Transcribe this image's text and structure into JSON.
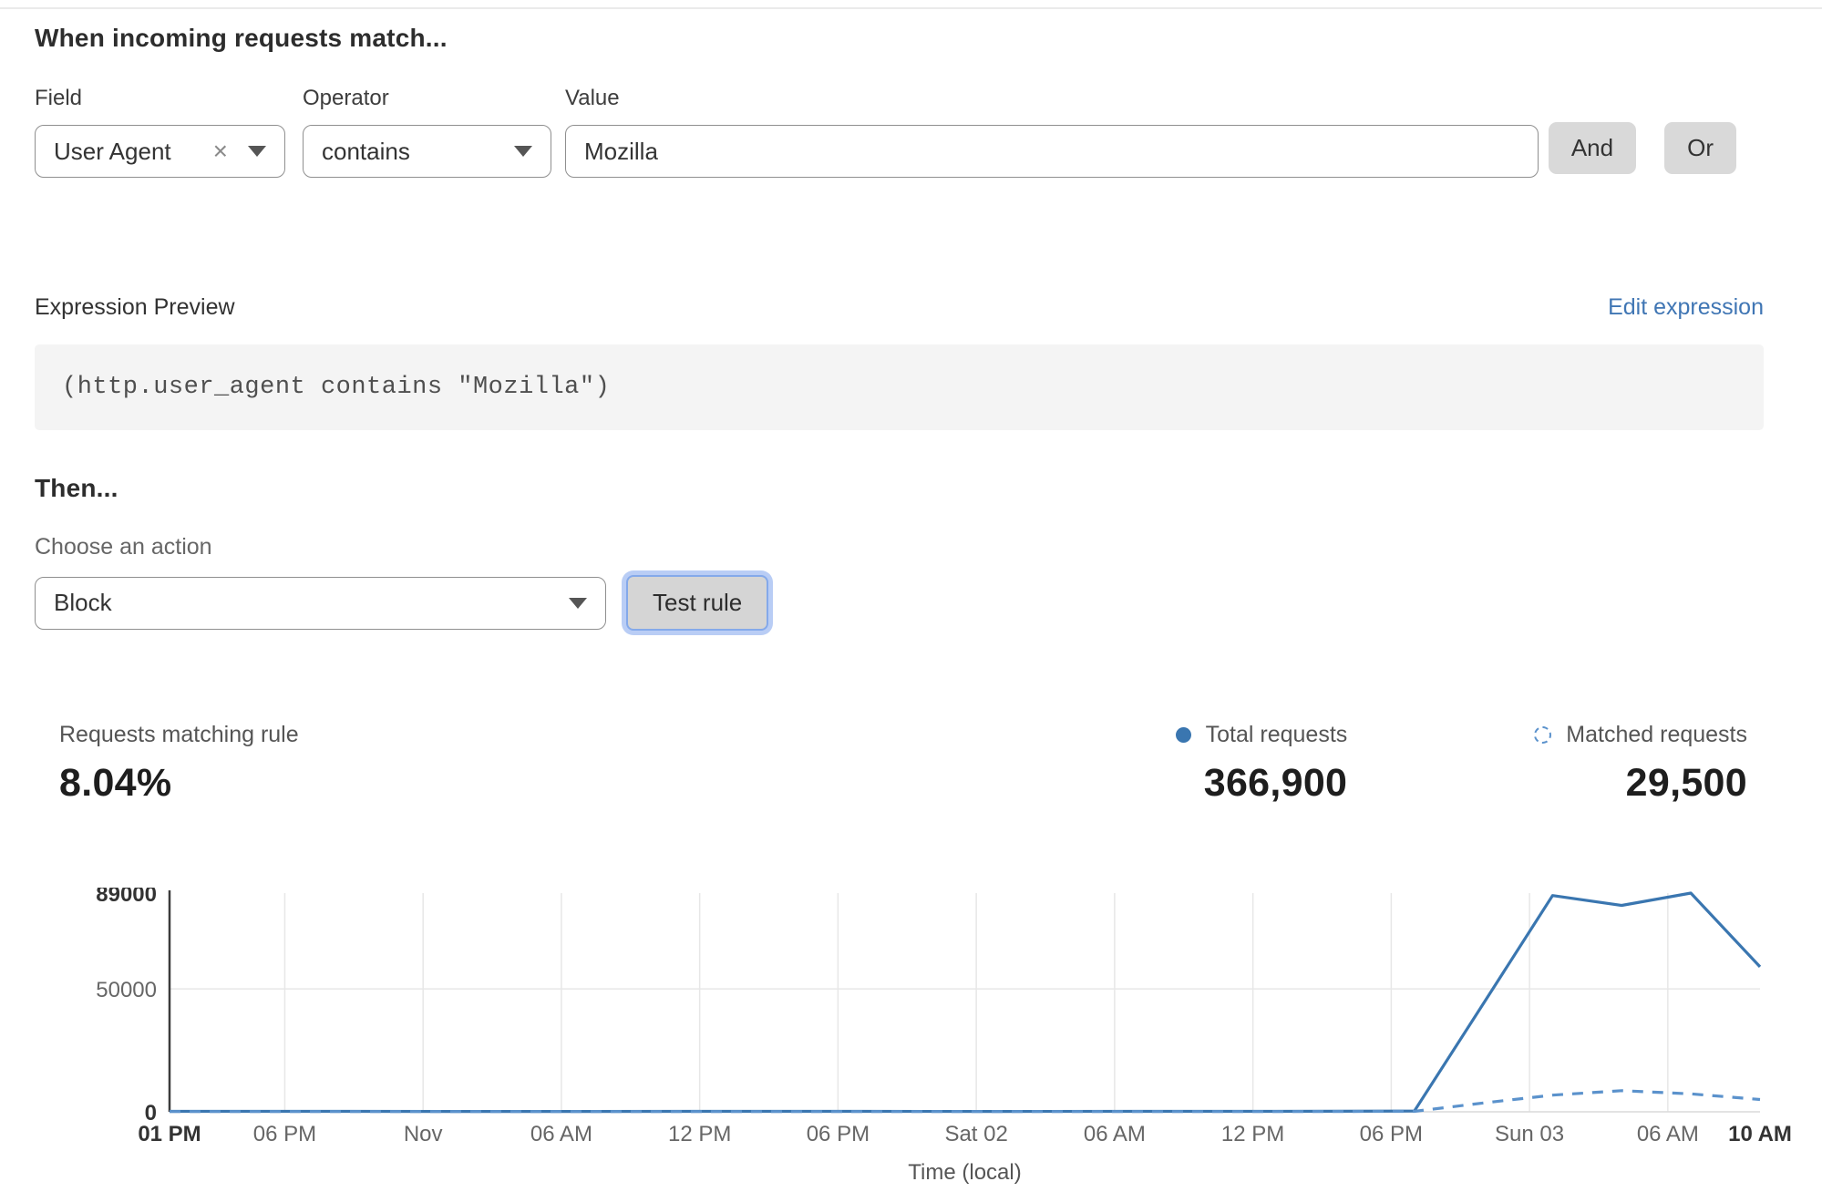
{
  "colors": {
    "line_blue": "#3a76b0",
    "dashed_blue": "#5b92cc",
    "link_blue": "#4076b4",
    "grid_gray": "#e7e7e7",
    "axis_dark": "#3c3c3c"
  },
  "icons": {
    "clear_glyph": "×"
  },
  "match_section": {
    "heading": "When incoming requests match...",
    "field_label": "Field",
    "operator_label": "Operator",
    "value_label": "Value",
    "field_value": "User Agent",
    "operator_value": "contains",
    "value_value": "Mozilla",
    "and_label": "And",
    "or_label": "Or"
  },
  "expression": {
    "label": "Expression Preview",
    "edit_link": "Edit expression",
    "code": "(http.user_agent contains \"Mozilla\")"
  },
  "then_section": {
    "heading": "Then...",
    "action_label": "Choose an action",
    "action_value": "Block",
    "test_button": "Test rule"
  },
  "stats": {
    "matching_label": "Requests matching rule",
    "matching_value": "8.04%",
    "total_label": "Total requests",
    "total_value": "366,900",
    "matched_label": "Matched requests",
    "matched_value": "29,500"
  },
  "chart_data": {
    "type": "line",
    "xlabel": "Time (local)",
    "ylabel": "",
    "ylim": [
      0,
      89000
    ],
    "x_span_hours": 69,
    "grid": true,
    "legend_position": "above-right",
    "yticks": [
      {
        "value": 0,
        "label": "0",
        "bold": true,
        "grid": false
      },
      {
        "value": 50000,
        "label": "50000",
        "bold": false,
        "grid": true
      },
      {
        "value": 89000,
        "label": "89000",
        "bold": true,
        "grid": false
      }
    ],
    "xticks": [
      {
        "h": 0,
        "label": "01 PM",
        "bold": true
      },
      {
        "h": 5,
        "label": "06 PM",
        "bold": false
      },
      {
        "h": 11,
        "label": "Nov",
        "bold": false
      },
      {
        "h": 17,
        "label": "06 AM",
        "bold": false
      },
      {
        "h": 23,
        "label": "12 PM",
        "bold": false
      },
      {
        "h": 29,
        "label": "06 PM",
        "bold": false
      },
      {
        "h": 35,
        "label": "Sat 02",
        "bold": false
      },
      {
        "h": 41,
        "label": "06 AM",
        "bold": false
      },
      {
        "h": 47,
        "label": "12 PM",
        "bold": false
      },
      {
        "h": 53,
        "label": "06 PM",
        "bold": false
      },
      {
        "h": 59,
        "label": "Sun 03",
        "bold": false
      },
      {
        "h": 65,
        "label": "06 AM",
        "bold": false
      },
      {
        "h": 69,
        "label": "10 AM",
        "bold": true
      }
    ],
    "series": [
      {
        "name": "Total requests",
        "style": "solid",
        "color": "#3a76b0",
        "points": [
          [
            0,
            200
          ],
          [
            6,
            200
          ],
          [
            12,
            150
          ],
          [
            18,
            150
          ],
          [
            24,
            200
          ],
          [
            30,
            200
          ],
          [
            36,
            150
          ],
          [
            42,
            200
          ],
          [
            48,
            200
          ],
          [
            54,
            300
          ],
          [
            57,
            44000
          ],
          [
            60,
            88000
          ],
          [
            63,
            84000
          ],
          [
            66,
            89000
          ],
          [
            69,
            59000
          ]
        ]
      },
      {
        "name": "Matched requests",
        "style": "dashed",
        "color": "#5b92cc",
        "points": [
          [
            0,
            100
          ],
          [
            6,
            100
          ],
          [
            12,
            100
          ],
          [
            18,
            100
          ],
          [
            24,
            100
          ],
          [
            30,
            100
          ],
          [
            36,
            100
          ],
          [
            42,
            100
          ],
          [
            48,
            100
          ],
          [
            54,
            200
          ],
          [
            57,
            3600
          ],
          [
            60,
            6800
          ],
          [
            63,
            8600
          ],
          [
            66,
            7300
          ],
          [
            69,
            5000
          ]
        ]
      }
    ]
  }
}
